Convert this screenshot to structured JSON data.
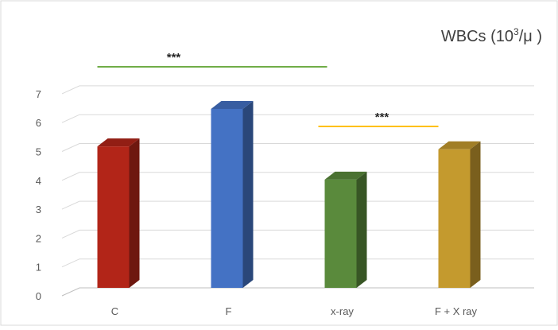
{
  "chart_data": {
    "type": "bar",
    "title_base": "WBCs (10",
    "title_sup": "3",
    "title_tail": "/μ )",
    "categories": [
      "C",
      "F",
      "x-ray",
      "F + X ray"
    ],
    "values": [
      4.9,
      6.2,
      3.75,
      4.8
    ],
    "ylim": [
      0,
      7
    ],
    "yticks": [
      "0",
      "1",
      "2",
      "3",
      "4",
      "5",
      "6",
      "7"
    ],
    "grid": true,
    "legend": "none",
    "bar_colors": [
      "#b22518",
      "#4472c4",
      "#5a8a3c",
      "#c49a2e"
    ],
    "annotations": [
      {
        "label": "***",
        "from": "C",
        "to": "x-ray",
        "color": "#70ad47"
      },
      {
        "label": "***",
        "from": "x-ray",
        "to": "F + X ray",
        "color": "#ffc000"
      }
    ]
  }
}
